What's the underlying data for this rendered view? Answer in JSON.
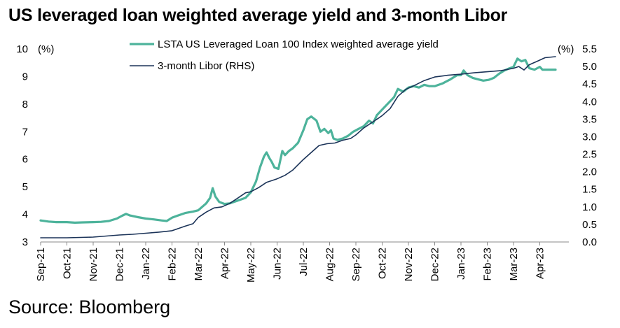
{
  "title": "US leveraged loan weighted average yield and 3-month Libor",
  "source": "Source: Bloomberg",
  "colors": {
    "loan_yield": "#4db39b",
    "libor": "#1b3358",
    "axis": "#8a8a8a"
  },
  "chart_data": {
    "type": "line",
    "title": "US leveraged loan weighted average yield and 3-month Libor",
    "left_axis": {
      "unit_label": "(%)",
      "ylim": [
        3,
        10
      ],
      "ticks": [
        3,
        4,
        5,
        6,
        7,
        8,
        9,
        10
      ]
    },
    "right_axis": {
      "unit_label": "(%)",
      "ylim": [
        0,
        5.5
      ],
      "ticks": [
        "0.0",
        "0.5",
        "1.0",
        "1.5",
        "2.0",
        "2.5",
        "3.0",
        "3.5",
        "4.0",
        "4.5",
        "5.0",
        "5.5"
      ]
    },
    "x_axis": {
      "categories": [
        "Sep-21",
        "Oct-21",
        "Nov-21",
        "Dec-21",
        "Jan-22",
        "Feb-22",
        "Mar-22",
        "Apr-22",
        "May-22",
        "Jun-22",
        "Jul-22",
        "Aug-22",
        "Sep-22",
        "Oct-22",
        "Nov-22",
        "Dec-22",
        "Jan-23",
        "Feb-23",
        "Mar-23",
        "Apr-23"
      ]
    },
    "grid": false,
    "legend_position": "top-center",
    "series": [
      {
        "name": "LSTA US Leveraged Loan 100 Index weighted average yield",
        "axis": "left",
        "points": [
          [
            0.0,
            3.78
          ],
          [
            0.3,
            3.74
          ],
          [
            0.6,
            3.72
          ],
          [
            1.0,
            3.72
          ],
          [
            1.3,
            3.7
          ],
          [
            1.6,
            3.71
          ],
          [
            2.0,
            3.72
          ],
          [
            2.3,
            3.73
          ],
          [
            2.6,
            3.76
          ],
          [
            2.9,
            3.85
          ],
          [
            3.1,
            3.95
          ],
          [
            3.25,
            4.02
          ],
          [
            3.4,
            3.96
          ],
          [
            3.7,
            3.9
          ],
          [
            4.0,
            3.85
          ],
          [
            4.3,
            3.82
          ],
          [
            4.6,
            3.78
          ],
          [
            4.8,
            3.76
          ],
          [
            5.0,
            3.88
          ],
          [
            5.2,
            3.95
          ],
          [
            5.5,
            4.05
          ],
          [
            5.8,
            4.1
          ],
          [
            6.0,
            4.15
          ],
          [
            6.3,
            4.4
          ],
          [
            6.45,
            4.6
          ],
          [
            6.55,
            4.95
          ],
          [
            6.65,
            4.65
          ],
          [
            6.8,
            4.45
          ],
          [
            7.0,
            4.38
          ],
          [
            7.2,
            4.4
          ],
          [
            7.5,
            4.5
          ],
          [
            7.8,
            4.6
          ],
          [
            8.0,
            4.8
          ],
          [
            8.2,
            5.2
          ],
          [
            8.35,
            5.7
          ],
          [
            8.5,
            6.1
          ],
          [
            8.6,
            6.25
          ],
          [
            8.7,
            6.05
          ],
          [
            8.8,
            5.9
          ],
          [
            8.9,
            5.7
          ],
          [
            9.05,
            5.65
          ],
          [
            9.2,
            6.3
          ],
          [
            9.3,
            6.15
          ],
          [
            9.45,
            6.3
          ],
          [
            9.6,
            6.4
          ],
          [
            9.8,
            6.6
          ],
          [
            10.0,
            7.05
          ],
          [
            10.15,
            7.45
          ],
          [
            10.3,
            7.55
          ],
          [
            10.5,
            7.4
          ],
          [
            10.65,
            7.0
          ],
          [
            10.8,
            7.1
          ],
          [
            10.95,
            6.95
          ],
          [
            11.05,
            7.05
          ],
          [
            11.15,
            6.75
          ],
          [
            11.3,
            6.7
          ],
          [
            11.5,
            6.75
          ],
          [
            11.7,
            6.85
          ],
          [
            11.9,
            7.0
          ],
          [
            12.1,
            7.1
          ],
          [
            12.3,
            7.2
          ],
          [
            12.5,
            7.4
          ],
          [
            12.65,
            7.3
          ],
          [
            12.8,
            7.6
          ],
          [
            13.0,
            7.8
          ],
          [
            13.15,
            7.95
          ],
          [
            13.3,
            8.1
          ],
          [
            13.45,
            8.25
          ],
          [
            13.6,
            8.55
          ],
          [
            13.8,
            8.45
          ],
          [
            14.0,
            8.6
          ],
          [
            14.2,
            8.65
          ],
          [
            14.4,
            8.6
          ],
          [
            14.6,
            8.7
          ],
          [
            14.8,
            8.65
          ],
          [
            15.0,
            8.65
          ],
          [
            15.3,
            8.75
          ],
          [
            15.6,
            8.9
          ],
          [
            15.85,
            9.05
          ],
          [
            16.0,
            9.05
          ],
          [
            16.1,
            9.22
          ],
          [
            16.25,
            9.05
          ],
          [
            16.45,
            8.95
          ],
          [
            16.65,
            8.9
          ],
          [
            16.85,
            8.85
          ],
          [
            17.05,
            8.88
          ],
          [
            17.25,
            8.95
          ],
          [
            17.45,
            9.1
          ],
          [
            17.65,
            9.22
          ],
          [
            17.85,
            9.3
          ],
          [
            18.0,
            9.35
          ],
          [
            18.15,
            9.65
          ],
          [
            18.3,
            9.55
          ],
          [
            18.45,
            9.6
          ],
          [
            18.6,
            9.3
          ],
          [
            18.8,
            9.25
          ],
          [
            19.0,
            9.35
          ],
          [
            19.1,
            9.25
          ],
          [
            19.4,
            9.25
          ],
          [
            19.6,
            9.25
          ]
        ]
      },
      {
        "name": "3-month Libor (RHS)",
        "axis": "right",
        "points": [
          [
            0.0,
            0.12
          ],
          [
            0.5,
            0.12
          ],
          [
            1.0,
            0.12
          ],
          [
            1.5,
            0.13
          ],
          [
            2.0,
            0.14
          ],
          [
            2.5,
            0.17
          ],
          [
            3.0,
            0.2
          ],
          [
            3.5,
            0.22
          ],
          [
            4.0,
            0.25
          ],
          [
            4.5,
            0.28
          ],
          [
            5.0,
            0.32
          ],
          [
            5.5,
            0.45
          ],
          [
            5.8,
            0.52
          ],
          [
            6.0,
            0.7
          ],
          [
            6.3,
            0.85
          ],
          [
            6.6,
            0.97
          ],
          [
            6.9,
            1.0
          ],
          [
            7.2,
            1.1
          ],
          [
            7.5,
            1.25
          ],
          [
            7.8,
            1.4
          ],
          [
            8.0,
            1.43
          ],
          [
            8.3,
            1.55
          ],
          [
            8.6,
            1.7
          ],
          [
            9.0,
            1.8
          ],
          [
            9.3,
            1.9
          ],
          [
            9.6,
            2.05
          ],
          [
            9.8,
            2.2
          ],
          [
            10.0,
            2.35
          ],
          [
            10.3,
            2.55
          ],
          [
            10.6,
            2.75
          ],
          [
            10.9,
            2.8
          ],
          [
            11.2,
            2.82
          ],
          [
            11.5,
            2.9
          ],
          [
            11.8,
            2.95
          ],
          [
            12.0,
            3.05
          ],
          [
            12.3,
            3.25
          ],
          [
            12.6,
            3.4
          ],
          [
            12.9,
            3.55
          ],
          [
            13.0,
            3.6
          ],
          [
            13.3,
            3.8
          ],
          [
            13.6,
            4.15
          ],
          [
            13.9,
            4.35
          ],
          [
            14.2,
            4.45
          ],
          [
            14.6,
            4.6
          ],
          [
            15.0,
            4.7
          ],
          [
            15.5,
            4.75
          ],
          [
            16.0,
            4.78
          ],
          [
            16.5,
            4.82
          ],
          [
            17.0,
            4.85
          ],
          [
            17.5,
            4.88
          ],
          [
            18.0,
            4.95
          ],
          [
            18.2,
            5.0
          ],
          [
            18.4,
            4.9
          ],
          [
            18.6,
            5.05
          ],
          [
            18.9,
            5.15
          ],
          [
            19.2,
            5.25
          ],
          [
            19.6,
            5.28
          ]
        ]
      }
    ]
  }
}
